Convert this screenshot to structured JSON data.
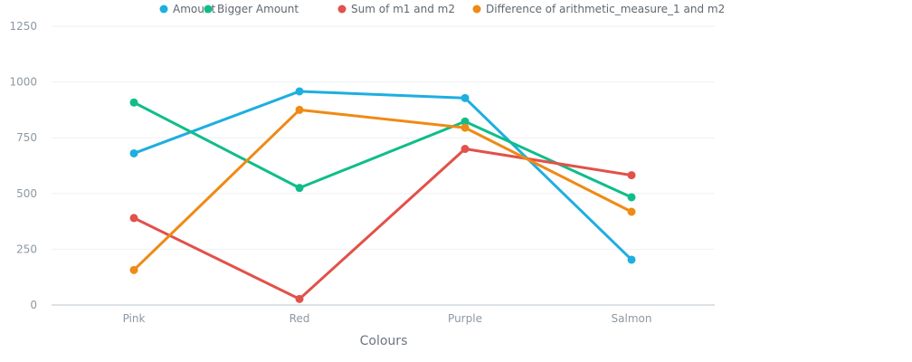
{
  "chart_data": {
    "type": "line",
    "categories": [
      "Pink",
      "Red",
      "Purple",
      "Salmon"
    ],
    "xlabel": "Colours",
    "ylabel": "",
    "ylim": [
      0,
      1250
    ],
    "yticks": [
      "0",
      "250",
      "500",
      "750",
      "1000",
      "1250"
    ],
    "grid": true,
    "legend_position": "top",
    "series": [
      {
        "name": "Amount",
        "color": "#1eaee0",
        "values": [
          680,
          958,
          928,
          203
        ]
      },
      {
        "name": "Bigger Amount",
        "color": "#10bd8a",
        "values": [
          908,
          525,
          823,
          483
        ]
      },
      {
        "name": "Sum of m1 and m2",
        "color": "#e2514a",
        "values": [
          390,
          27,
          700,
          582
        ]
      },
      {
        "name": "Difference of arithmetic_measure_1 and m2",
        "color": "#ef8a14",
        "values": [
          157,
          875,
          795,
          418
        ]
      }
    ]
  }
}
